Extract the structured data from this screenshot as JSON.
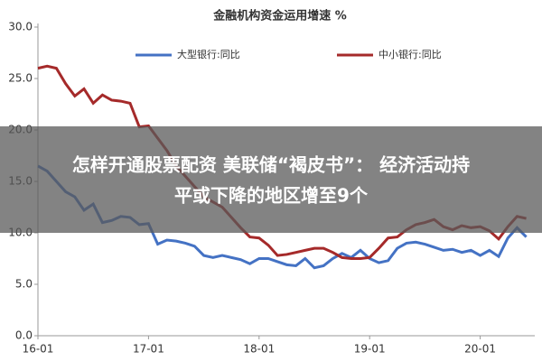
{
  "chart_data": {
    "type": "line",
    "title": "金融机构资金运用增速 %",
    "x": [
      "16-01",
      "16-02",
      "16-03",
      "16-04",
      "16-05",
      "16-06",
      "16-07",
      "16-08",
      "16-09",
      "16-10",
      "16-11",
      "16-12",
      "17-01",
      "17-02",
      "17-03",
      "17-04",
      "17-05",
      "17-06",
      "17-07",
      "17-08",
      "17-09",
      "17-10",
      "17-11",
      "17-12",
      "18-01",
      "18-02",
      "18-03",
      "18-04",
      "18-05",
      "18-06",
      "18-07",
      "18-08",
      "18-09",
      "18-10",
      "18-11",
      "18-12",
      "19-01",
      "19-02",
      "19-03",
      "19-04",
      "19-05",
      "19-06",
      "19-07",
      "19-08",
      "19-09",
      "19-10",
      "19-11",
      "19-12",
      "20-01",
      "20-02",
      "20-03",
      "20-04",
      "20-05",
      "20-06"
    ],
    "xticks": [
      "16-01",
      "17-01",
      "18-01",
      "19-01",
      "20-01"
    ],
    "ylim": [
      0,
      30
    ],
    "yticks": [
      {
        "value": 0,
        "label": "0.0"
      },
      {
        "value": 5,
        "label": "5.0"
      },
      {
        "value": 10,
        "label": "10.0"
      },
      {
        "value": 15,
        "label": "15.0"
      },
      {
        "value": 20,
        "label": "20.0"
      },
      {
        "value": 25,
        "label": "25.0"
      },
      {
        "value": 30,
        "label": "30.0"
      }
    ],
    "series": [
      {
        "name": "大型银行:同比",
        "color": "#4472c4",
        "values": [
          16.5,
          16.0,
          15.0,
          14.0,
          13.5,
          12.2,
          12.8,
          11.0,
          11.2,
          11.6,
          11.5,
          10.8,
          10.9,
          8.9,
          9.3,
          9.2,
          9.0,
          8.7,
          7.8,
          7.6,
          7.8,
          7.6,
          7.4,
          7.0,
          7.5,
          7.5,
          7.2,
          6.9,
          6.8,
          7.5,
          6.6,
          6.8,
          7.5,
          8.0,
          7.6,
          8.3,
          7.5,
          7.1,
          7.3,
          8.5,
          9.0,
          9.1,
          8.9,
          8.6,
          8.3,
          8.4,
          8.1,
          8.3,
          7.8,
          8.3,
          7.7,
          9.5,
          10.5,
          9.6
        ]
      },
      {
        "name": "中小银行:同比",
        "color": "#a52a2a",
        "values": [
          26.0,
          26.2,
          26.0,
          24.5,
          23.3,
          24.0,
          22.6,
          23.4,
          22.9,
          22.8,
          22.6,
          20.3,
          20.4,
          19.2,
          18.0,
          16.5,
          15.5,
          14.5,
          13.5,
          13.0,
          12.5,
          11.5,
          10.5,
          9.6,
          9.5,
          8.8,
          7.8,
          7.9,
          8.1,
          8.3,
          8.5,
          8.5,
          8.1,
          7.6,
          7.5,
          7.5,
          7.6,
          8.5,
          9.5,
          9.6,
          10.3,
          10.8,
          11.0,
          11.3,
          10.6,
          10.3,
          10.7,
          10.5,
          10.6,
          10.2,
          9.4,
          10.6,
          11.6,
          11.4
        ]
      }
    ]
  },
  "banner": {
    "lines": [
      "怎样开通股票配资 美联储“褐皮书”： 经济活动持",
      "平或下降的地区增至9个"
    ]
  }
}
